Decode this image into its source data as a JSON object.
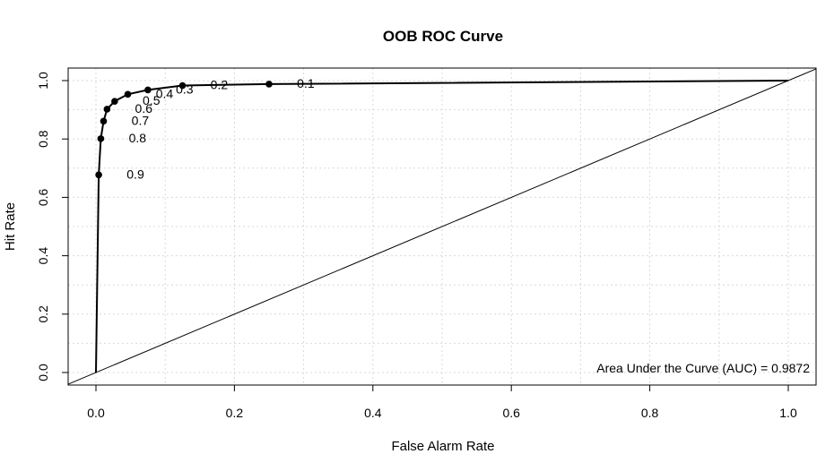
{
  "chart_data": {
    "type": "line",
    "title": "OOB ROC Curve",
    "xlabel": "False Alarm Rate",
    "ylabel": "Hit Rate",
    "xlim": [
      0,
      1
    ],
    "ylim": [
      0,
      1
    ],
    "x_ticks": [
      "0.0",
      "0.2",
      "0.4",
      "0.6",
      "0.8",
      "1.0"
    ],
    "y_ticks": [
      "0.0",
      "0.2",
      "0.4",
      "0.6",
      "0.8",
      "1.0"
    ],
    "grid": true,
    "series": [
      {
        "x": [
          0.0,
          0.004,
          0.007,
          0.011,
          0.016,
          0.027,
          0.046,
          0.075,
          0.125,
          0.25,
          1.0
        ],
        "y": [
          0.0,
          0.677,
          0.801,
          0.861,
          0.902,
          0.929,
          0.953,
          0.968,
          0.983,
          0.988,
          1.0
        ]
      }
    ],
    "points": [
      {
        "x": 0.004,
        "y": 0.677,
        "label": "0.9"
      },
      {
        "x": 0.007,
        "y": 0.801,
        "label": "0.8"
      },
      {
        "x": 0.011,
        "y": 0.861,
        "label": "0.7"
      },
      {
        "x": 0.016,
        "y": 0.902,
        "label": "0.6"
      },
      {
        "x": 0.027,
        "y": 0.929,
        "label": "0.5"
      },
      {
        "x": 0.046,
        "y": 0.953,
        "label": "0.4"
      },
      {
        "x": 0.075,
        "y": 0.968,
        "label": "0.3"
      },
      {
        "x": 0.125,
        "y": 0.983,
        "label": "0.2"
      },
      {
        "x": 0.25,
        "y": 0.988,
        "label": "0.1"
      }
    ],
    "reference_line": {
      "x": [
        0,
        1
      ],
      "y": [
        0,
        1
      ]
    },
    "annotation": "Area Under the Curve (AUC) = 0.9872"
  }
}
